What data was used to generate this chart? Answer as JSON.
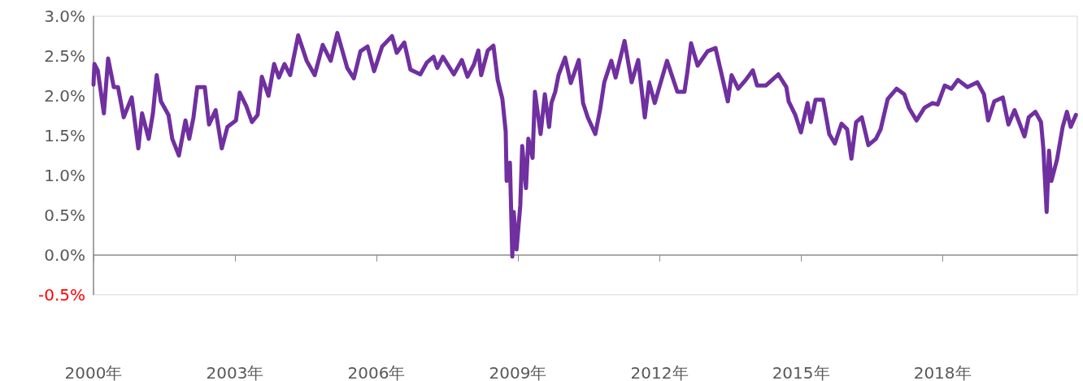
{
  "chart_data": {
    "type": "line",
    "color": "#7030a0",
    "x": [
      2000.0,
      2000.02,
      2000.09,
      2000.22,
      2000.31,
      2000.43,
      2000.52,
      2000.64,
      2000.81,
      2000.95,
      2001.03,
      2001.17,
      2001.26,
      2001.34,
      2001.43,
      2001.59,
      2001.67,
      2001.81,
      2001.95,
      2002.03,
      2002.12,
      2002.2,
      2002.36,
      2002.45,
      2002.59,
      2002.72,
      2002.84,
      2003.02,
      2003.1,
      2003.24,
      2003.36,
      2003.48,
      2003.57,
      2003.71,
      2003.83,
      2003.93,
      2004.05,
      2004.17,
      2004.34,
      2004.52,
      2004.69,
      2004.86,
      2005.03,
      2005.17,
      2005.38,
      2005.52,
      2005.66,
      2005.81,
      2005.95,
      2006.12,
      2006.33,
      2006.43,
      2006.59,
      2006.72,
      2006.93,
      2007.07,
      2007.21,
      2007.29,
      2007.41,
      2007.64,
      2007.81,
      2007.93,
      2008.07,
      2008.16,
      2008.22,
      2008.36,
      2008.48,
      2008.57,
      2008.67,
      2008.74,
      2008.76,
      2008.83,
      2008.88,
      2008.91,
      2008.97,
      2009.05,
      2009.09,
      2009.17,
      2009.22,
      2009.31,
      2009.36,
      2009.48,
      2009.57,
      2009.66,
      2009.71,
      2009.79,
      2009.86,
      2010.0,
      2010.12,
      2010.29,
      2010.38,
      2010.48,
      2010.64,
      2010.74,
      2010.83,
      2010.98,
      2011.07,
      2011.26,
      2011.41,
      2011.55,
      2011.69,
      2011.78,
      2011.9,
      2012.16,
      2012.38,
      2012.53,
      2012.59,
      2012.67,
      2012.81,
      2013.02,
      2013.19,
      2013.31,
      2013.45,
      2013.53,
      2013.67,
      2013.83,
      2013.98,
      2014.07,
      2014.26,
      2014.52,
      2014.69,
      2014.74,
      2014.88,
      2015.0,
      2015.14,
      2015.21,
      2015.31,
      2015.47,
      2015.6,
      2015.72,
      2015.86,
      2015.98,
      2016.07,
      2016.17,
      2016.29,
      2016.43,
      2016.59,
      2016.69,
      2016.84,
      2017.03,
      2017.19,
      2017.29,
      2017.45,
      2017.62,
      2017.79,
      2017.9,
      2018.05,
      2018.19,
      2018.33,
      2018.53,
      2018.74,
      2018.88,
      2018.97,
      2019.1,
      2019.28,
      2019.4,
      2019.53,
      2019.74,
      2019.83,
      2019.97,
      2020.09,
      2020.14,
      2020.21,
      2020.26,
      2020.31,
      2020.43,
      2020.55,
      2020.64,
      2020.72,
      2020.83
    ],
    "values": [
      2.14,
      2.4,
      2.32,
      1.78,
      2.47,
      2.11,
      2.11,
      1.73,
      1.98,
      1.34,
      1.78,
      1.46,
      1.78,
      2.26,
      1.93,
      1.76,
      1.46,
      1.25,
      1.69,
      1.46,
      1.73,
      2.11,
      2.11,
      1.64,
      1.82,
      1.34,
      1.61,
      1.69,
      2.04,
      1.87,
      1.67,
      1.76,
      2.24,
      2.0,
      2.4,
      2.23,
      2.4,
      2.26,
      2.76,
      2.44,
      2.26,
      2.64,
      2.44,
      2.79,
      2.35,
      2.22,
      2.56,
      2.62,
      2.31,
      2.62,
      2.75,
      2.54,
      2.67,
      2.33,
      2.27,
      2.42,
      2.49,
      2.35,
      2.49,
      2.27,
      2.45,
      2.24,
      2.4,
      2.57,
      2.26,
      2.57,
      2.63,
      2.2,
      1.96,
      1.55,
      0.93,
      1.16,
      -0.02,
      0.54,
      0.07,
      0.63,
      1.37,
      0.84,
      1.46,
      1.22,
      2.05,
      1.52,
      2.02,
      1.61,
      1.91,
      2.05,
      2.26,
      2.48,
      2.16,
      2.45,
      1.91,
      1.73,
      1.52,
      1.82,
      2.17,
      2.44,
      2.23,
      2.69,
      2.17,
      2.45,
      1.73,
      2.17,
      1.91,
      2.44,
      2.05,
      2.05,
      2.29,
      2.66,
      2.38,
      2.56,
      2.6,
      2.29,
      1.93,
      2.26,
      2.09,
      2.2,
      2.32,
      2.13,
      2.13,
      2.27,
      2.11,
      1.93,
      1.76,
      1.54,
      1.91,
      1.67,
      1.95,
      1.95,
      1.52,
      1.4,
      1.65,
      1.58,
      1.21,
      1.67,
      1.73,
      1.38,
      1.46,
      1.58,
      1.96,
      2.09,
      2.02,
      1.85,
      1.69,
      1.85,
      1.91,
      1.89,
      2.13,
      2.09,
      2.2,
      2.11,
      2.17,
      2.02,
      1.69,
      1.93,
      1.98,
      1.64,
      1.82,
      1.49,
      1.73,
      1.8,
      1.67,
      1.34,
      0.54,
      1.31,
      0.93,
      1.2,
      1.61,
      1.8,
      1.61,
      1.76
    ],
    "xlim": [
      2000,
      2020.86
    ],
    "xticks": [
      {
        "value": 2000,
        "label": "2000年"
      },
      {
        "value": 2003,
        "label": "2003年"
      },
      {
        "value": 2006,
        "label": "2006年"
      },
      {
        "value": 2009,
        "label": "2009年"
      },
      {
        "value": 2012,
        "label": "2012年"
      },
      {
        "value": 2015,
        "label": "2015年"
      },
      {
        "value": 2018,
        "label": "2018年"
      }
    ],
    "ylim": [
      -0.5,
      3
    ],
    "yticks": [
      {
        "value": -0.5,
        "label": "-0.5%"
      },
      {
        "value": 0,
        "label": "0.0%"
      },
      {
        "value": 0.5,
        "label": "0.5%"
      },
      {
        "value": 1,
        "label": "1.0%"
      },
      {
        "value": 1.5,
        "label": "1.5%"
      },
      {
        "value": 2,
        "label": "2.0%"
      },
      {
        "value": 2.5,
        "label": "2.5%"
      },
      {
        "value": 3,
        "label": "3.0%"
      }
    ]
  }
}
